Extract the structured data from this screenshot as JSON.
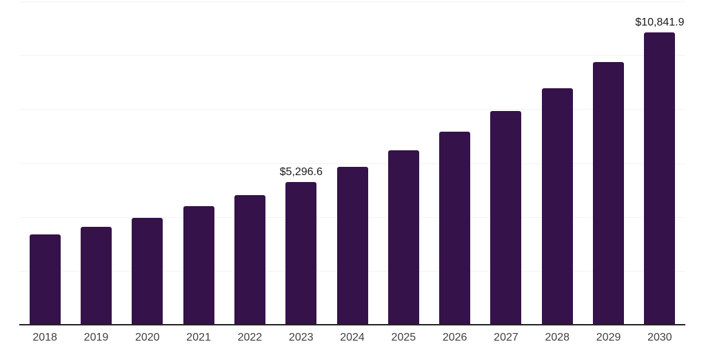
{
  "chart_data": {
    "type": "bar",
    "title": "",
    "xlabel": "",
    "ylabel": "",
    "categories": [
      "2018",
      "2019",
      "2020",
      "2021",
      "2022",
      "2023",
      "2024",
      "2025",
      "2026",
      "2027",
      "2028",
      "2029",
      "2030"
    ],
    "values": [
      3350,
      3630,
      3960,
      4400,
      4810,
      5296.6,
      5860,
      6470,
      7160,
      7930,
      8770,
      9750,
      10841.9
    ],
    "data_labels": [
      "",
      "",
      "",
      "",
      "",
      "$5,296.6",
      "",
      "",
      "",
      "",
      "",
      "",
      "$10,841.9"
    ],
    "ylim": [
      0,
      12000
    ],
    "gridline_values": [
      2000,
      4000,
      6000,
      8000,
      10000,
      12000
    ],
    "grid": "horizontal",
    "legend": "none",
    "y_tick_labels_shown": false,
    "colors": {
      "bar": "#351249",
      "gridline": "#f2f2f2",
      "axis_line": "#222222",
      "tick_label": "#404040",
      "data_label": "#1a1a1a",
      "background": "#ffffff"
    }
  }
}
